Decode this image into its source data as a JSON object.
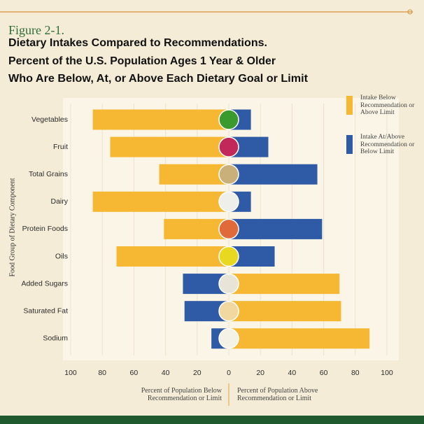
{
  "chart_data": {
    "type": "diverging-bar",
    "figure_label": "Figure 2-1.",
    "title": [
      "Dietary Intakes Compared to Recommendations.",
      "Percent of the U.S. Population Ages 1 Year & Older",
      "Who Are Below, At, or Above Each Dietary Goal or Limit"
    ],
    "ylabel": "Food Group of Dietary Component",
    "xlabel_left": "Percent of Population Below Recommendation or Limit",
    "xlabel_right": "Percent of Population Above Recommendation or Limit",
    "categories": [
      "Vegetables",
      "Fruit",
      "Total Grains",
      "Dairy",
      "Protein Foods",
      "Oils",
      "Added Sugars",
      "Saturated Fat",
      "Sodium"
    ],
    "series": [
      {
        "name": "Intake Below Recommendation or Above Limit",
        "color": "#f6b832",
        "values": [
          -86,
          -75,
          -44,
          -86,
          -41,
          -71,
          70,
          71,
          89
        ]
      },
      {
        "name": "Intake At/Above Recommendation or Below Limit",
        "color": "#2f5aa6",
        "values": [
          14,
          25,
          56,
          14,
          59,
          29,
          -29,
          -28,
          -11
        ]
      }
    ],
    "xlim": [
      -100,
      100
    ],
    "xticks": [
      {
        "value": -100,
        "label": "100"
      },
      {
        "value": -80,
        "label": "80"
      },
      {
        "value": -60,
        "label": "60"
      },
      {
        "value": -40,
        "label": "40"
      },
      {
        "value": -20,
        "label": "20"
      },
      0,
      20,
      40,
      60,
      80,
      100
    ],
    "grid": true
  }
}
